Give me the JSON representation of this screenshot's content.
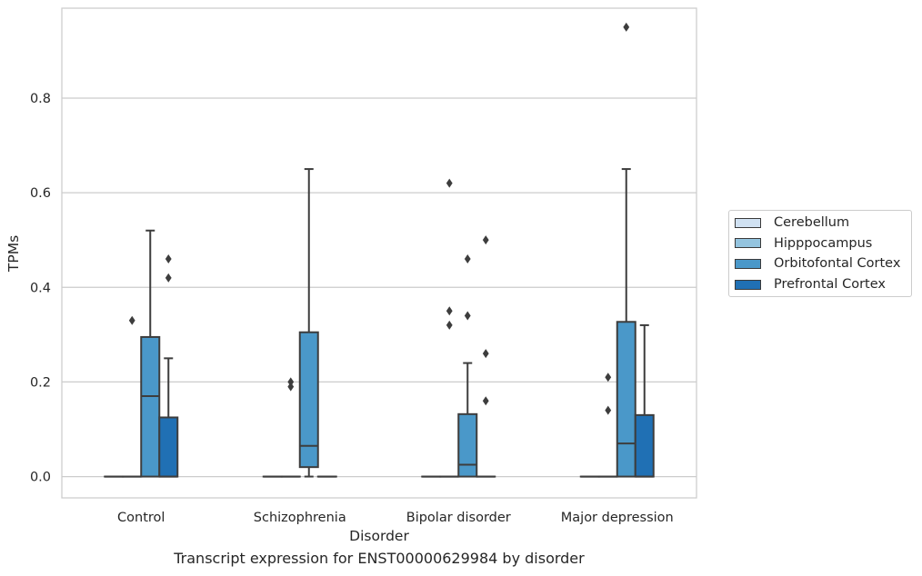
{
  "chart_data": {
    "type": "boxplot",
    "title": "",
    "caption": "Transcript expression for ENST00000629984 by disorder",
    "xlabel": "Disorder",
    "ylabel": "TPMs",
    "ylim": [
      -0.045,
      0.99
    ],
    "yticks": [
      0.0,
      0.2,
      0.4,
      0.6,
      0.8
    ],
    "ytick_labels": [
      "0.0",
      "0.2",
      "0.4",
      "0.6",
      "0.8"
    ],
    "grid": "horizontal",
    "legend_position": "right",
    "categories": [
      "Control",
      "Schizophrenia",
      "Bipolar disorder",
      "Major depression"
    ],
    "series": [
      {
        "name": "Cerebellum",
        "color": "#d0e1f2",
        "boxes": [
          {
            "category": "Control",
            "whisker_low": 0,
            "q1": 0,
            "median": 0,
            "q3": 0,
            "whisker_high": 0,
            "outliers": []
          },
          {
            "category": "Schizophrenia",
            "whisker_low": 0,
            "q1": 0,
            "median": 0,
            "q3": 0,
            "whisker_high": 0,
            "outliers": []
          },
          {
            "category": "Bipolar disorder",
            "whisker_low": 0,
            "q1": 0,
            "median": 0,
            "q3": 0,
            "whisker_high": 0,
            "outliers": []
          },
          {
            "category": "Major depression",
            "whisker_low": 0,
            "q1": 0,
            "median": 0,
            "q3": 0,
            "whisker_high": 0,
            "outliers": []
          }
        ]
      },
      {
        "name": "Hipppocampus",
        "color": "#94c4df",
        "boxes": [
          {
            "category": "Control",
            "whisker_low": 0,
            "q1": 0,
            "median": 0,
            "q3": 0,
            "whisker_high": 0,
            "outliers": [
              0.33
            ]
          },
          {
            "category": "Schizophrenia",
            "whisker_low": 0,
            "q1": 0,
            "median": 0,
            "q3": 0,
            "whisker_high": 0,
            "outliers": [
              0.19,
              0.2
            ]
          },
          {
            "category": "Bipolar disorder",
            "whisker_low": 0,
            "q1": 0,
            "median": 0,
            "q3": 0,
            "whisker_high": 0,
            "outliers": [
              0.32,
              0.35,
              0.62
            ]
          },
          {
            "category": "Major depression",
            "whisker_low": 0,
            "q1": 0,
            "median": 0,
            "q3": 0,
            "whisker_high": 0,
            "outliers": [
              0.14,
              0.21
            ]
          }
        ]
      },
      {
        "name": "Orbitofontal Cortex",
        "color": "#4a98c9",
        "boxes": [
          {
            "category": "Control",
            "whisker_low": 0,
            "q1": 0,
            "median": 0.17,
            "q3": 0.295,
            "whisker_high": 0.52,
            "outliers": []
          },
          {
            "category": "Schizophrenia",
            "whisker_low": 0,
            "q1": 0.02,
            "median": 0.065,
            "q3": 0.305,
            "whisker_high": 0.65,
            "outliers": []
          },
          {
            "category": "Bipolar disorder",
            "whisker_low": 0,
            "q1": 0,
            "median": 0.025,
            "q3": 0.132,
            "whisker_high": 0.24,
            "outliers": [
              0.34,
              0.46
            ]
          },
          {
            "category": "Major depression",
            "whisker_low": 0,
            "q1": 0,
            "median": 0.07,
            "q3": 0.327,
            "whisker_high": 0.65,
            "outliers": [
              0.95
            ]
          }
        ]
      },
      {
        "name": "Prefrontal Cortex",
        "color": "#2070b4",
        "boxes": [
          {
            "category": "Control",
            "whisker_low": 0,
            "q1": 0,
            "median": 0,
            "q3": 0.125,
            "whisker_high": 0.25,
            "outliers": [
              0.42,
              0.46
            ]
          },
          {
            "category": "Schizophrenia",
            "whisker_low": 0,
            "q1": 0,
            "median": 0,
            "q3": 0,
            "whisker_high": 0,
            "outliers": []
          },
          {
            "category": "Bipolar disorder",
            "whisker_low": 0,
            "q1": 0,
            "median": 0,
            "q3": 0,
            "whisker_high": 0,
            "outliers": [
              0.16,
              0.26,
              0.5
            ]
          },
          {
            "category": "Major depression",
            "whisker_low": 0,
            "q1": 0,
            "median": 0,
            "q3": 0.13,
            "whisker_high": 0.32,
            "outliers": []
          }
        ]
      }
    ]
  }
}
